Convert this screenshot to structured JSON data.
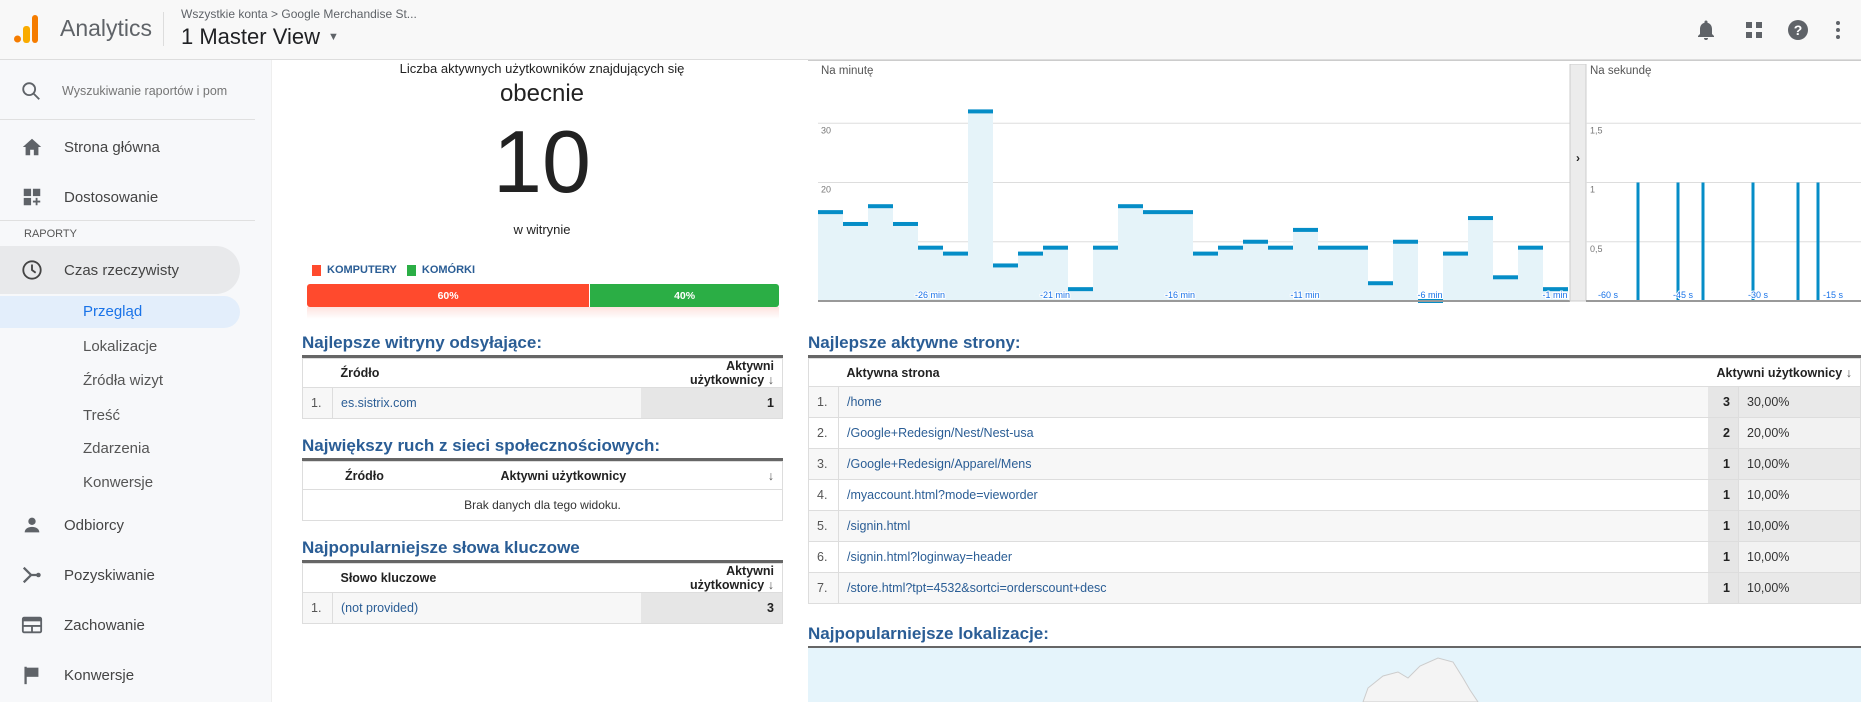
{
  "header": {
    "app_name": "Analytics",
    "breadcrumb_parent": "Wszystkie konta",
    "breadcrumb_sep": ">",
    "breadcrumb_account": "Google Merchandise St...",
    "view_name": "1 Master View"
  },
  "sidebar": {
    "search_placeholder": "Wyszukiwanie raportów i pomocy",
    "home": "Strona główna",
    "customize": "Dostosowanie",
    "section_label": "RAPORTY",
    "realtime": "Czas rzeczywisty",
    "realtime_sub": [
      "Przegląd",
      "Lokalizacje",
      "Źródła wizyt",
      "Treść",
      "Zdarzenia",
      "Konwersje"
    ],
    "audience": "Odbiorcy",
    "acquisition": "Pozyskiwanie",
    "behavior": "Zachowanie",
    "conversions": "Konwersje"
  },
  "active_users": {
    "label": "Liczba aktywnych użytkowników znajdujących się",
    "now": "obecnie",
    "count": "10",
    "on_site": "w witrynie",
    "devices": [
      {
        "name": "KOMPUTERY",
        "percent": 60,
        "label": "60%",
        "color": "#ff4a2d"
      },
      {
        "name": "KOMÓRKI",
        "percent": 40,
        "label": "40%",
        "color": "#2bae45"
      }
    ]
  },
  "pageviews_chart": {
    "per_minute": {
      "title": "Na minutę",
      "ylim": [
        0,
        40
      ],
      "y_ticks": [
        "10",
        "20",
        "30"
      ],
      "x_labels": [
        "-26 min",
        "-21 min",
        "-16 min",
        "-11 min",
        "-6 min",
        "-1 min"
      ],
      "values": [
        15,
        13,
        16,
        13,
        9,
        8,
        32,
        6,
        8,
        9,
        2,
        9,
        16,
        15,
        15,
        8,
        9,
        10,
        9,
        12,
        9,
        9,
        3,
        10,
        0,
        8,
        14,
        4,
        9,
        2
      ]
    },
    "per_second": {
      "title": "Na sekundę",
      "ylim": [
        0,
        2
      ],
      "y_ticks": [
        "0,5",
        "1",
        "1,5"
      ],
      "x_labels": [
        "-60 s",
        "-45 s",
        "-30 s",
        "-15 s"
      ],
      "hits_at_seconds": [
        -54,
        -46,
        -41,
        -31,
        -22,
        -18
      ],
      "hit_value": 1
    },
    "colors": {
      "line": "#058dc7",
      "fill": "#e5f3f9"
    }
  },
  "referrals": {
    "title": "Najlepsze witryny odsyłające:",
    "col_source": "Źródło",
    "col_users": "Aktywni użytkownicy",
    "rows": [
      {
        "n": "1.",
        "source": "es.sistrix.com",
        "users": "1"
      }
    ]
  },
  "social": {
    "title": "Największy ruch z sieci społecznościowych:",
    "col_source": "Źródło",
    "col_users": "Aktywni użytkownicy",
    "empty": "Brak danych dla tego widoku."
  },
  "keywords": {
    "title": "Najpopularniejsze słowa kluczowe",
    "col_keyword": "Słowo kluczowe",
    "col_users": "Aktywni użytkownicy",
    "rows": [
      {
        "n": "1.",
        "keyword": "(not provided)",
        "users": "3"
      }
    ]
  },
  "pages": {
    "title": "Najlepsze aktywne strony:",
    "col_page": "Aktywna strona",
    "col_users": "Aktywni użytkownicy",
    "rows": [
      {
        "n": "1.",
        "page": "/home",
        "users": "3",
        "pct": "30,00%"
      },
      {
        "n": "2.",
        "page": "/Google+Redesign/Nest/Nest-usa",
        "users": "2",
        "pct": "20,00%"
      },
      {
        "n": "3.",
        "page": "/Google+Redesign/Apparel/Mens",
        "users": "1",
        "pct": "10,00%"
      },
      {
        "n": "4.",
        "page": "/myaccount.html?mode=vieworder",
        "users": "1",
        "pct": "10,00%"
      },
      {
        "n": "5.",
        "page": "/signin.html",
        "users": "1",
        "pct": "10,00%"
      },
      {
        "n": "6.",
        "page": "/signin.html?loginway=header",
        "users": "1",
        "pct": "10,00%"
      },
      {
        "n": "7.",
        "page": "/store.html?tpt=4532&sortci=orderscount+desc",
        "users": "1",
        "pct": "10,00%"
      }
    ]
  },
  "locations": {
    "title": "Najpopularniejsze lokalizacje:"
  }
}
